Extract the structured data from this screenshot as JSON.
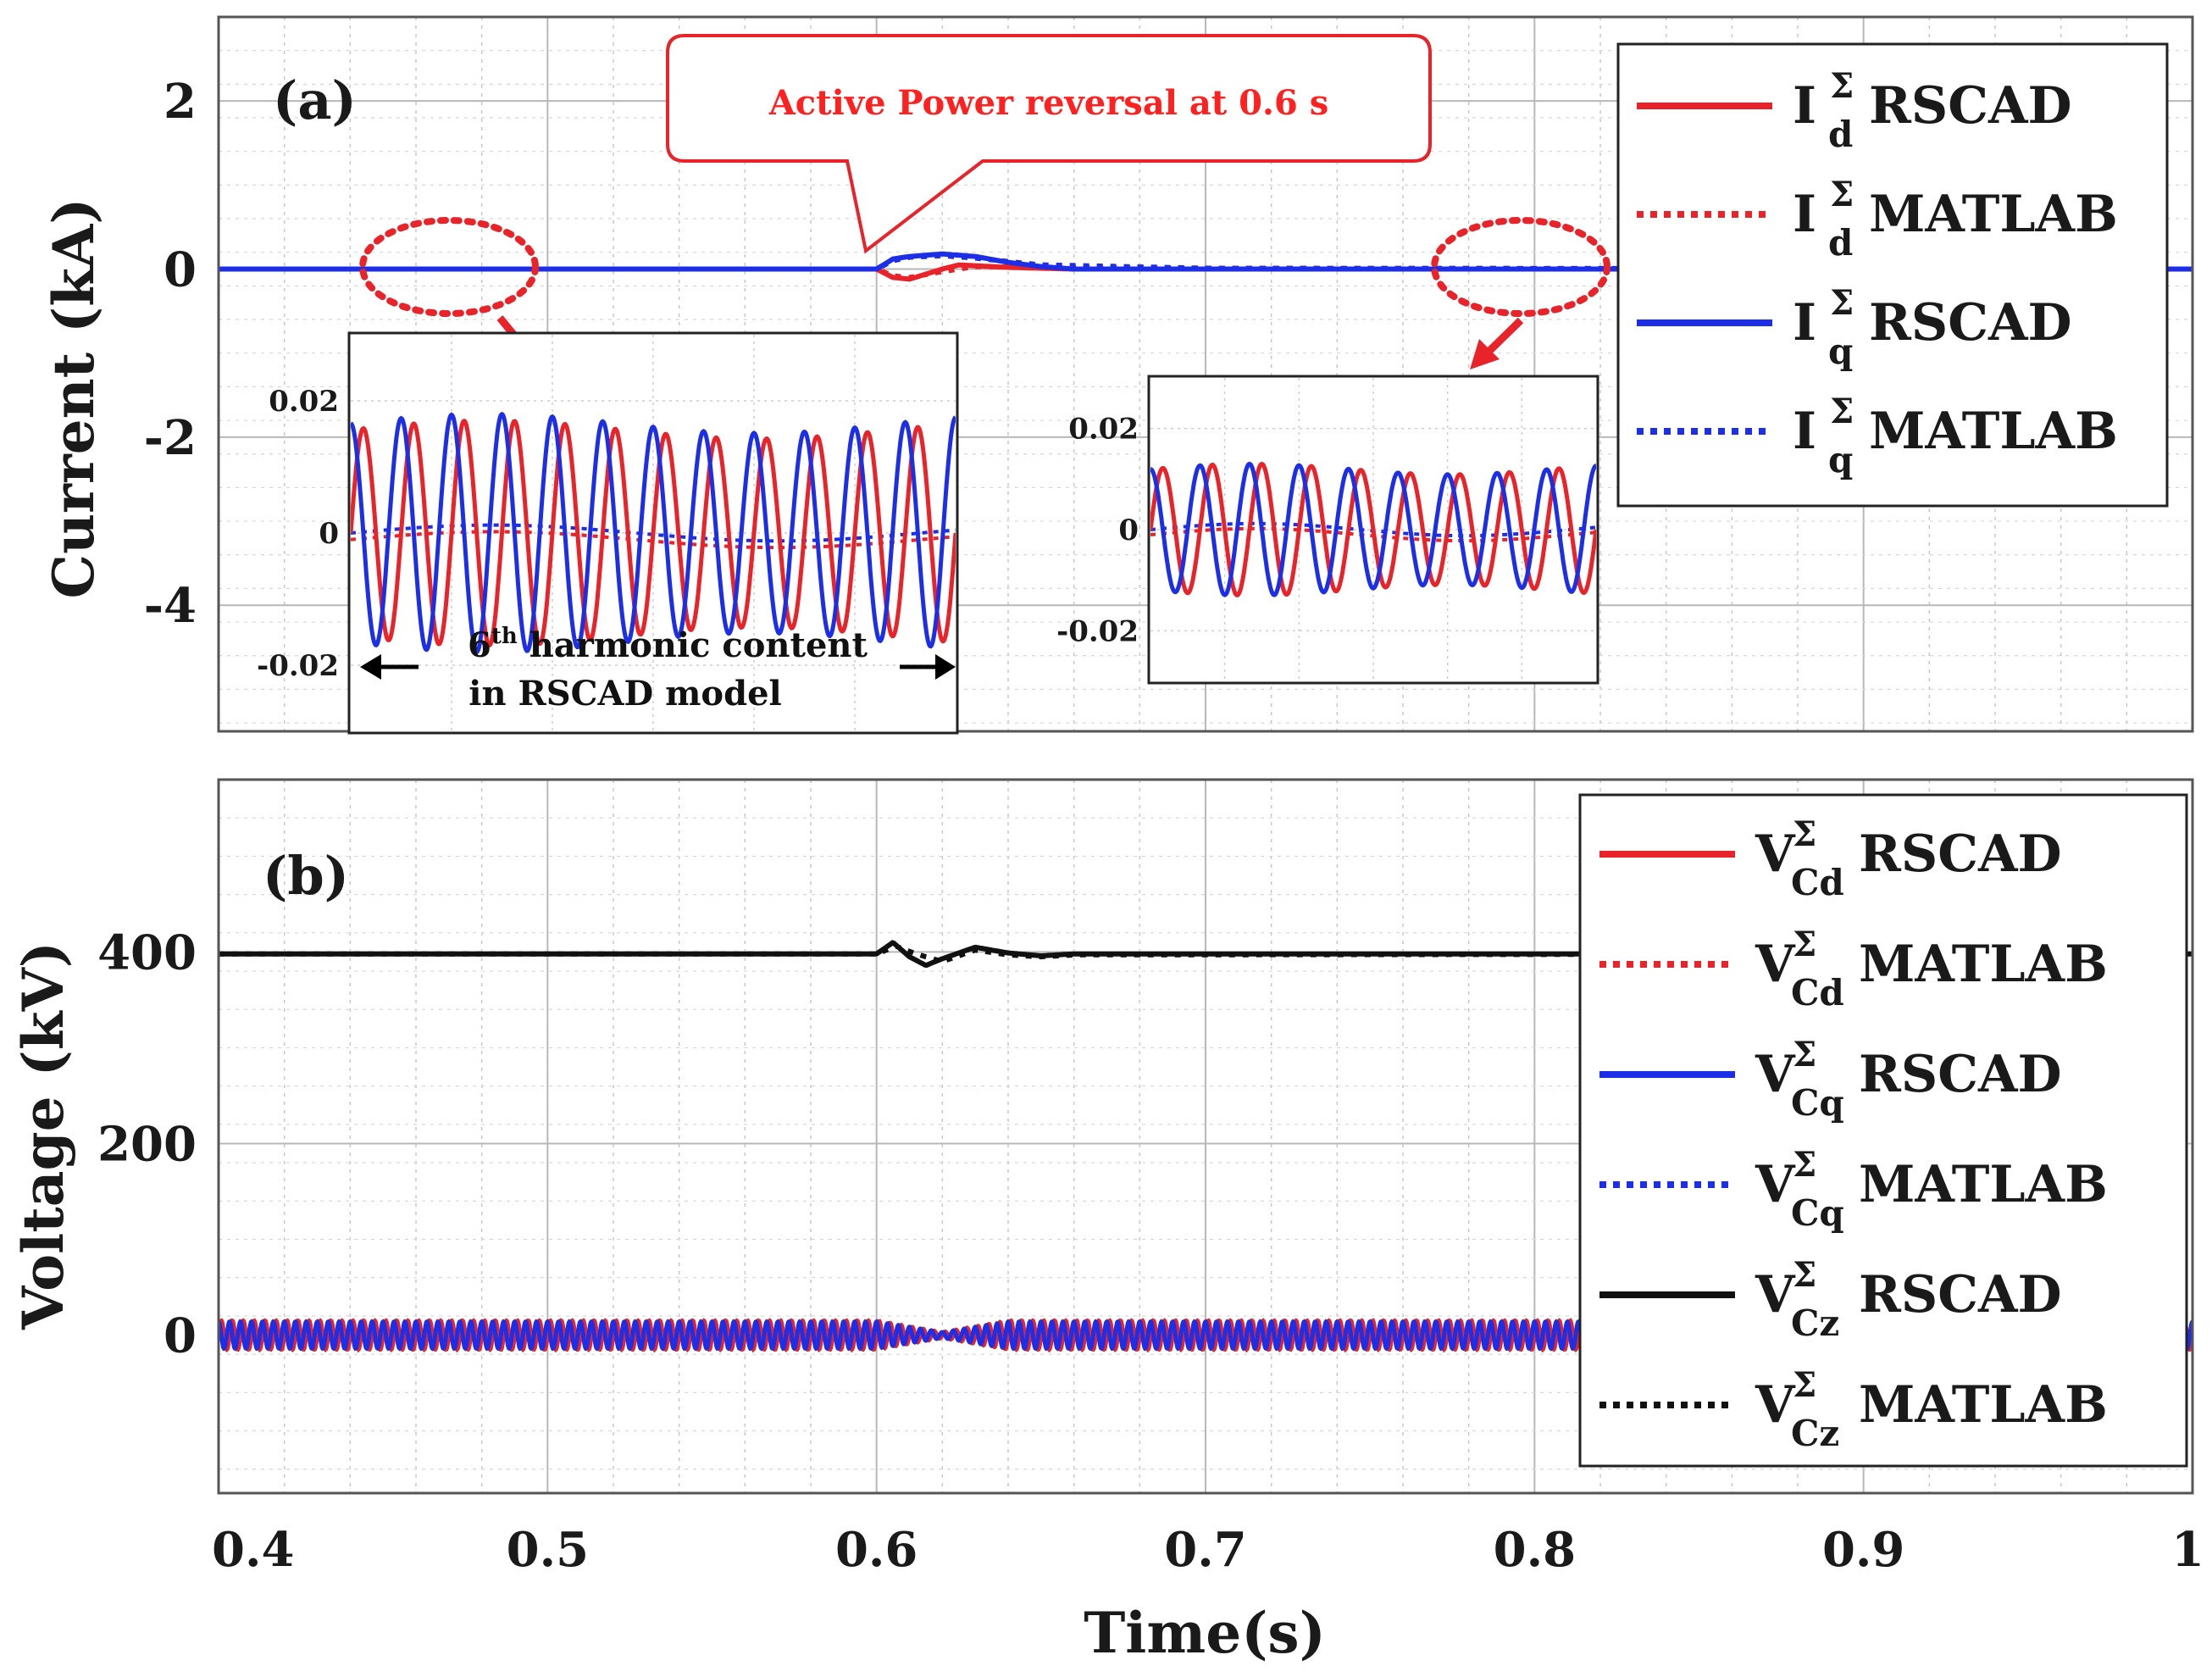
{
  "colors": {
    "red": "#e8232a",
    "blue": "#1d2fe6",
    "black": "#111111",
    "grid": "#c8c8c8",
    "callout_border": "#e8232a",
    "callout_text": "#ff2020",
    "inset_arrow": "#e8232a"
  },
  "chart_data": [
    {
      "panel": "(a)",
      "type": "line",
      "xlabel": "",
      "ylabel": "Current (kA)",
      "xlim": [
        0.4,
        1.0
      ],
      "ylim": [
        -5.5,
        3
      ],
      "yticks": [
        "2",
        "0",
        "-2",
        "-4"
      ],
      "ytick_values": [
        2,
        0,
        -2,
        -4
      ],
      "grid": true,
      "legend_placement": "top-right",
      "series": [
        {
          "name": "I_d^Σ RSCAD",
          "base": "I",
          "sup": "Σ",
          "sub": "d",
          "source": "RSCAD",
          "color": "red",
          "dash": "solid",
          "x": [
            0.4,
            0.6,
            0.605,
            0.61,
            0.615,
            0.62,
            0.625,
            0.63,
            0.64,
            0.65,
            0.66,
            1.0
          ],
          "y": [
            0.0,
            0.0,
            -0.1,
            -0.12,
            -0.06,
            0.0,
            0.05,
            0.04,
            0.02,
            0.01,
            0.0,
            0.0
          ]
        },
        {
          "name": "I_d^Σ MATLAB",
          "base": "I",
          "sup": "Σ",
          "sub": "d",
          "source": "MATLAB",
          "color": "red",
          "dash": "dotted",
          "x": [
            0.4,
            0.6,
            0.605,
            0.61,
            0.62,
            0.63,
            0.65,
            0.7,
            1.0
          ],
          "y": [
            0.0,
            0.0,
            -0.08,
            -0.1,
            -0.03,
            0.03,
            0.02,
            0.01,
            0.0
          ]
        },
        {
          "name": "I_q^Σ RSCAD",
          "base": "I",
          "sup": "Σ",
          "sub": "q",
          "source": "RSCAD",
          "color": "blue",
          "dash": "solid",
          "x": [
            0.4,
            0.6,
            0.605,
            0.61,
            0.62,
            0.63,
            0.64,
            0.65,
            0.66,
            1.0
          ],
          "y": [
            0.0,
            0.0,
            0.12,
            0.15,
            0.18,
            0.15,
            0.08,
            0.03,
            0.0,
            0.0
          ]
        },
        {
          "name": "I_q^Σ MATLAB",
          "base": "I",
          "sup": "Σ",
          "sub": "q",
          "source": "MATLAB",
          "color": "blue",
          "dash": "dotted",
          "x": [
            0.4,
            0.6,
            0.605,
            0.61,
            0.62,
            0.63,
            0.65,
            0.7,
            1.0
          ],
          "y": [
            0.0,
            0.0,
            0.1,
            0.14,
            0.16,
            0.13,
            0.05,
            0.01,
            0.0
          ]
        }
      ],
      "annotations": {
        "callout": "Active Power reversal at 0.6 s",
        "inset_caption_pre": "6",
        "inset_caption_sup": "th",
        "inset_caption_rest": " harmonic content",
        "inset_caption_line2": "in RSCAD model"
      },
      "insets": [
        {
          "name": "zoom-left",
          "yticks": [
            "0.02",
            "0",
            "-0.02"
          ],
          "ytick_values": [
            0.02,
            0,
            -0.02
          ],
          "ylim": [
            -0.03,
            0.03
          ],
          "cycles": 12,
          "red_amplitude": 0.017,
          "blue_amplitude": 0.018,
          "red_matlab_offset": -0.001,
          "blue_matlab_offset": 0.0
        },
        {
          "name": "zoom-right",
          "yticks": [
            "0.02",
            "0",
            "-0.02"
          ],
          "ytick_values": [
            0.02,
            0,
            -0.02
          ],
          "ylim": [
            -0.03,
            0.03
          ],
          "cycles": 9,
          "red_amplitude": 0.013,
          "blue_amplitude": 0.013,
          "red_matlab_offset": -0.001,
          "blue_matlab_offset": 0.0
        }
      ]
    },
    {
      "panel": "(b)",
      "type": "line",
      "xlabel": "Time(s)",
      "ylabel": "Voltage (kV)",
      "xlim": [
        0.4,
        1.0
      ],
      "ylim": [
        -165,
        580
      ],
      "xticks": [
        "0.4",
        "0.5",
        "0.6",
        "0.7",
        "0.8",
        "0.9",
        "1"
      ],
      "xtick_values": [
        0.4,
        0.5,
        0.6,
        0.7,
        0.8,
        0.9,
        1.0
      ],
      "yticks": [
        "400",
        "200",
        "0"
      ],
      "ytick_values": [
        400,
        200,
        0
      ],
      "grid": true,
      "legend_placement": "top-right",
      "series": [
        {
          "name": "V_Cd^Σ RSCAD",
          "base": "V",
          "sup": "Σ",
          "sub": "Cd",
          "source": "RSCAD",
          "color": "red",
          "dash": "solid",
          "amplitude": 15,
          "dip_amplitude": 3,
          "x": [
            0.4,
            1.0
          ],
          "y": [
            0,
            0
          ]
        },
        {
          "name": "V_Cd^Σ MATLAB",
          "base": "V",
          "sup": "Σ",
          "sub": "Cd",
          "source": "MATLAB",
          "color": "red",
          "dash": "dotted",
          "amplitude": 13,
          "dip_amplitude": 3,
          "x": [
            0.4,
            1.0
          ],
          "y": [
            0,
            0
          ]
        },
        {
          "name": "V_Cq^Σ RSCAD",
          "base": "V",
          "sup": "Σ",
          "sub": "Cq",
          "source": "RSCAD",
          "color": "blue",
          "dash": "solid",
          "amplitude": 14,
          "dip_amplitude": 3,
          "x": [
            0.4,
            1.0
          ],
          "y": [
            0,
            0
          ]
        },
        {
          "name": "V_Cq^Σ MATLAB",
          "base": "V",
          "sup": "Σ",
          "sub": "Cq",
          "source": "MATLAB",
          "color": "blue",
          "dash": "dotted",
          "amplitude": 12,
          "dip_amplitude": 3,
          "x": [
            0.4,
            1.0
          ],
          "y": [
            0,
            0
          ]
        },
        {
          "name": "V_Cz^Σ RSCAD",
          "base": "V",
          "sup": "Σ",
          "sub": "Cz",
          "source": "RSCAD",
          "color": "black",
          "dash": "solid",
          "x": [
            0.4,
            0.6,
            0.605,
            0.61,
            0.615,
            0.62,
            0.63,
            0.64,
            0.65,
            0.66,
            1.0
          ],
          "y": [
            398,
            398,
            410,
            395,
            386,
            393,
            405,
            399,
            396,
            398,
            398
          ]
        },
        {
          "name": "V_Cz^Σ MATLAB",
          "base": "V",
          "sup": "Σ",
          "sub": "Cz",
          "source": "MATLAB",
          "color": "black",
          "dash": "dotted",
          "x": [
            0.4,
            0.6,
            0.606,
            0.612,
            0.62,
            0.63,
            0.64,
            0.65,
            0.66,
            1.0
          ],
          "y": [
            398,
            398,
            406,
            398,
            390,
            402,
            397,
            395,
            397,
            398
          ]
        }
      ]
    }
  ]
}
